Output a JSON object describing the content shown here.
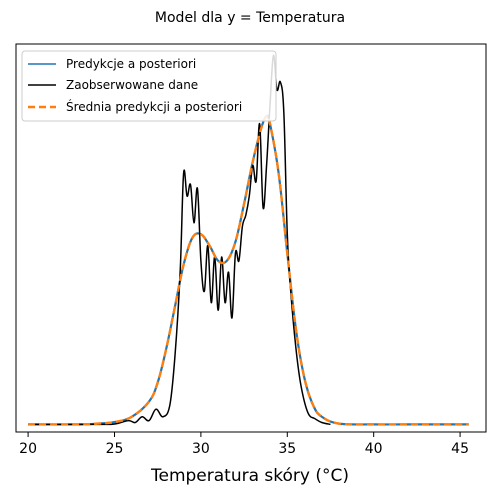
{
  "chart_data": {
    "type": "line",
    "title": "Model dla y = Temperatura",
    "xlabel": "Temperatura skóry (°C)",
    "ylabel": "",
    "xlim": [
      19.3,
      46.5
    ],
    "ylim": [
      -0.02,
      1.0
    ],
    "x_ticks": [
      20,
      25,
      30,
      35,
      40,
      45
    ],
    "y_ticks_visible": false,
    "grid": false,
    "legend": "upper-left",
    "colors": {
      "posterior": "#1f77b4",
      "observed": "#000000",
      "mean": "#ff7f0e"
    },
    "series": [
      {
        "name": "Predykcje a posteriori",
        "style": "solid",
        "color": "#1f77b4",
        "x": [
          20,
          23,
          24,
          25,
          26,
          27,
          27.5,
          28,
          28.5,
          29,
          29.5,
          30,
          30.5,
          31,
          31.5,
          32,
          32.5,
          33,
          33.5,
          33.8,
          34,
          34.5,
          35,
          35.5,
          36,
          36.5,
          37,
          38,
          40,
          42,
          45.5
        ],
        "y": [
          0.0,
          0.0,
          0.002,
          0.006,
          0.02,
          0.06,
          0.11,
          0.2,
          0.31,
          0.42,
          0.49,
          0.5,
          0.47,
          0.43,
          0.43,
          0.48,
          0.58,
          0.69,
          0.78,
          0.81,
          0.79,
          0.66,
          0.45,
          0.25,
          0.12,
          0.05,
          0.02,
          0.002,
          0.0,
          0.0,
          0.0
        ]
      },
      {
        "name": "Zaobserwowane dane",
        "style": "solid",
        "color": "#000000",
        "x": [
          20,
          24,
          25,
          25.8,
          26.2,
          26.6,
          27.0,
          27.4,
          27.8,
          28.2,
          28.5,
          28.8,
          29.0,
          29.2,
          29.4,
          29.6,
          29.8,
          30.0,
          30.2,
          30.4,
          30.6,
          30.8,
          31.0,
          31.2,
          31.4,
          31.6,
          31.8,
          32.0,
          32.2,
          32.4,
          32.6,
          32.8,
          33.0,
          33.2,
          33.4,
          33.6,
          33.8,
          34.0,
          34.2,
          34.4,
          34.6,
          34.8,
          35.0,
          35.2,
          35.5,
          35.8,
          36.2,
          36.6,
          37.0,
          37.5
        ],
        "y": [
          0.0,
          0.0,
          0.001,
          0.01,
          0.005,
          0.02,
          0.01,
          0.04,
          0.02,
          0.05,
          0.18,
          0.4,
          0.66,
          0.6,
          0.63,
          0.53,
          0.62,
          0.43,
          0.35,
          0.47,
          0.32,
          0.44,
          0.3,
          0.44,
          0.32,
          0.4,
          0.28,
          0.45,
          0.43,
          0.52,
          0.55,
          0.6,
          0.68,
          0.64,
          0.79,
          0.57,
          0.68,
          0.84,
          0.97,
          0.88,
          0.9,
          0.82,
          0.5,
          0.35,
          0.2,
          0.1,
          0.03,
          0.015,
          0.005,
          0.0
        ]
      },
      {
        "name": "Średnia predykcji a posteriori",
        "style": "dashed",
        "color": "#ff7f0e",
        "x": [
          20,
          23,
          24,
          25,
          26,
          27,
          27.5,
          28,
          28.5,
          29,
          29.5,
          30,
          30.5,
          31,
          31.5,
          32,
          32.5,
          33,
          33.5,
          33.8,
          34,
          34.5,
          35,
          35.5,
          36,
          36.5,
          37,
          38,
          40,
          42,
          45.5
        ],
        "y": [
          0.0,
          0.0,
          0.002,
          0.006,
          0.02,
          0.06,
          0.11,
          0.2,
          0.31,
          0.42,
          0.49,
          0.5,
          0.47,
          0.43,
          0.43,
          0.48,
          0.58,
          0.69,
          0.78,
          0.81,
          0.79,
          0.66,
          0.45,
          0.25,
          0.12,
          0.05,
          0.02,
          0.002,
          0.0,
          0.0,
          0.0
        ]
      }
    ]
  }
}
